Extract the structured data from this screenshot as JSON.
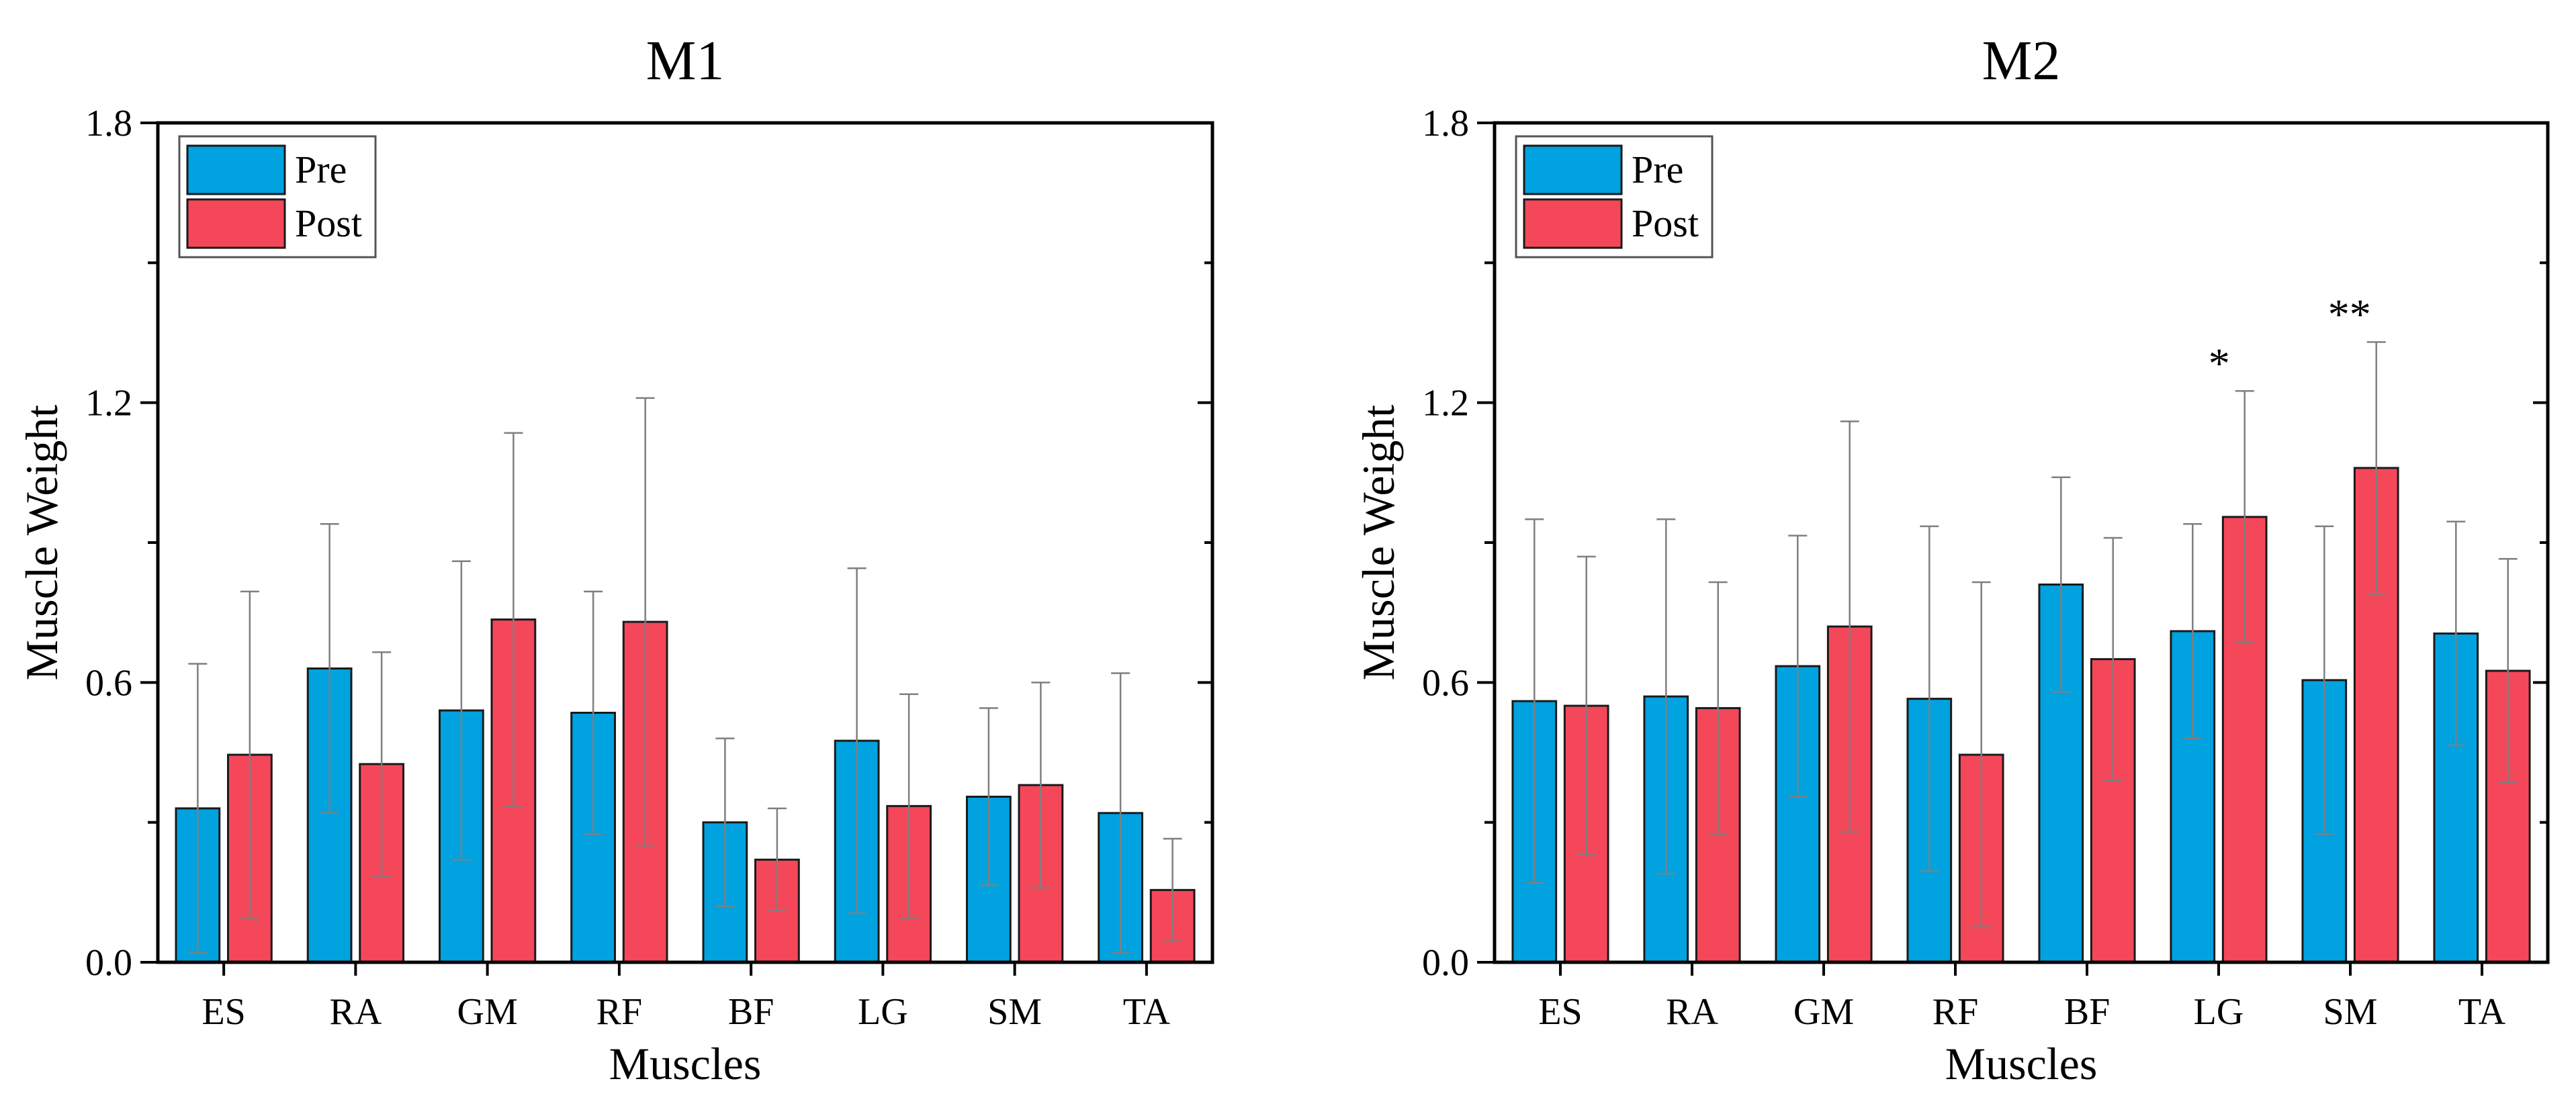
{
  "colors": {
    "pre": "#00A2E0",
    "post": "#F5475A",
    "axis": "#000000",
    "error": "#7f7f7f"
  },
  "chart_data": [
    {
      "type": "bar",
      "title": "M1",
      "xlabel": "Muscles",
      "ylabel": "Muscle Weight",
      "ylim": [
        0,
        1.8
      ],
      "yticks": [
        "0.0",
        "0.6",
        "1.2",
        "1.8"
      ],
      "categories": [
        "ES",
        "RA",
        "GM",
        "RF",
        "BF",
        "LG",
        "SM",
        "TA"
      ],
      "legend": {
        "position": "top-left",
        "entries": [
          "Pre",
          "Post"
        ]
      },
      "series": [
        {
          "name": "Pre",
          "values": [
            0.33,
            0.63,
            0.54,
            0.535,
            0.3,
            0.475,
            0.355,
            0.32
          ],
          "error": [
            0.31,
            0.31,
            0.32,
            0.26,
            0.18,
            0.37,
            0.19,
            0.3
          ]
        },
        {
          "name": "Post",
          "values": [
            0.445,
            0.425,
            0.735,
            0.73,
            0.22,
            0.335,
            0.38,
            0.155
          ],
          "error": [
            0.35,
            0.24,
            0.4,
            0.48,
            0.11,
            0.24,
            0.22,
            0.11
          ]
        }
      ],
      "annotations": []
    },
    {
      "type": "bar",
      "title": "M2",
      "xlabel": "Muscles",
      "ylabel": "Muscle Weight",
      "ylim": [
        0,
        1.8
      ],
      "yticks": [
        "0.0",
        "0.6",
        "1.2",
        "1.8"
      ],
      "categories": [
        "ES",
        "RA",
        "GM",
        "RF",
        "BF",
        "LG",
        "SM",
        "TA"
      ],
      "legend": {
        "position": "top-left",
        "entries": [
          "Pre",
          "Post"
        ]
      },
      "series": [
        {
          "name": "Pre",
          "values": [
            0.56,
            0.57,
            0.635,
            0.565,
            0.81,
            0.71,
            0.605,
            0.705
          ],
          "error": [
            0.39,
            0.38,
            0.28,
            0.37,
            0.23,
            0.23,
            0.33,
            0.24
          ]
        },
        {
          "name": "Post",
          "values": [
            0.55,
            0.545,
            0.72,
            0.445,
            0.65,
            0.955,
            1.06,
            0.625
          ],
          "error": [
            0.32,
            0.27,
            0.44,
            0.37,
            0.26,
            0.27,
            0.27,
            0.24
          ]
        }
      ],
      "annotations": [
        {
          "category": "LG",
          "text": "*"
        },
        {
          "category": "SM",
          "text": "**"
        }
      ]
    }
  ]
}
